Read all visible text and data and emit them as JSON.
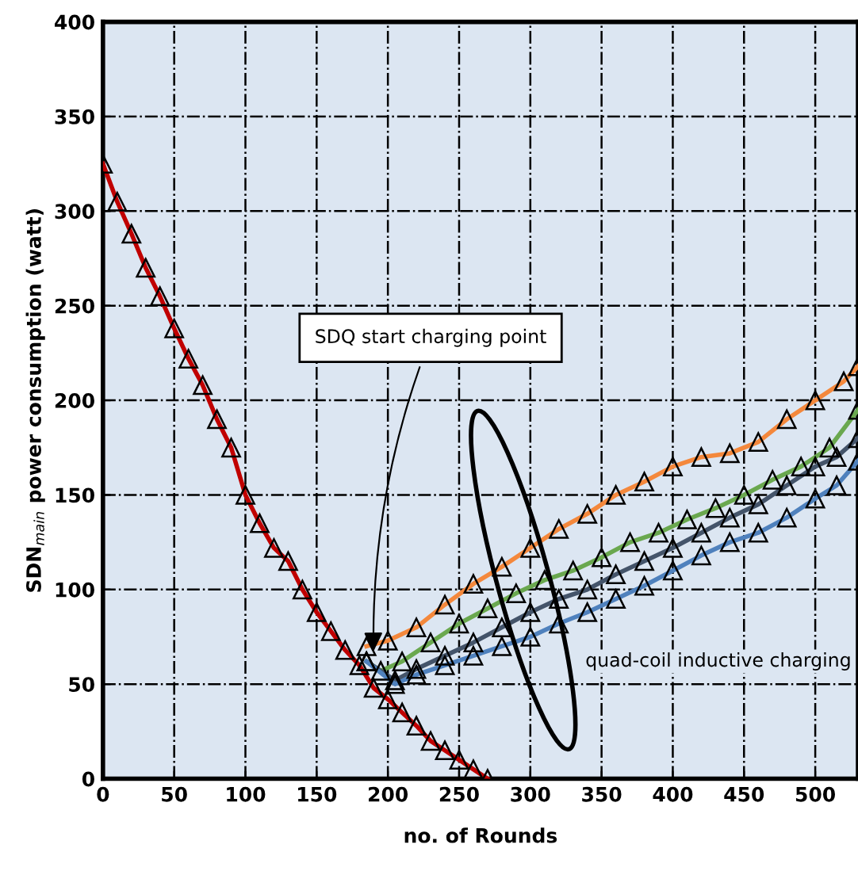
{
  "chart_data": {
    "type": "line",
    "xlabel": "no. of Rounds",
    "ylabel": "SDN$_{main}$ power consumption (watt)",
    "xlim": [
      0,
      530
    ],
    "xticks": [
      0,
      50,
      100,
      150,
      200,
      250,
      300,
      350,
      400,
      450,
      500
    ],
    "ylim": [
      0,
      400
    ],
    "yticks": [
      0,
      50,
      100,
      150,
      200,
      250,
      300,
      350,
      400
    ],
    "grid": true,
    "line_style": "solid",
    "marker": "triangle",
    "legend": false,
    "annotations": [
      {
        "text": "SDQ start charging point",
        "x": 190,
        "y": 65
      },
      "quad-coil inductive charging"
    ],
    "series": [
      {
        "color": "#c00000",
        "x": [
          0,
          10,
          20,
          30,
          40,
          50,
          60,
          70,
          80,
          90,
          100,
          110,
          120,
          130,
          140,
          150,
          160,
          170,
          180,
          190,
          200,
          210,
          220,
          230,
          240,
          250,
          260,
          270
        ],
        "values": [
          325,
          305,
          288,
          270,
          255,
          238,
          222,
          208,
          190,
          175,
          150,
          135,
          122,
          115,
          100,
          88,
          78,
          68,
          60,
          48,
          42,
          35,
          28,
          20,
          15,
          10,
          5,
          0
        ]
      },
      {
        "color": "#f4883c",
        "x": [
          185,
          200,
          220,
          240,
          260,
          280,
          300,
          320,
          340,
          360,
          380,
          400,
          420,
          440,
          460,
          480,
          500,
          520,
          530
        ],
        "values": [
          70,
          73,
          80,
          92,
          103,
          112,
          122,
          132,
          140,
          150,
          157,
          165,
          170,
          172,
          178,
          190,
          200,
          210,
          218
        ]
      },
      {
        "color": "#6aa84f",
        "x": [
          185,
          195,
          210,
          230,
          250,
          270,
          290,
          310,
          330,
          350,
          370,
          390,
          410,
          430,
          450,
          470,
          490,
          510,
          530
        ],
        "values": [
          62,
          57,
          62,
          72,
          82,
          90,
          98,
          105,
          110,
          117,
          125,
          130,
          137,
          143,
          150,
          158,
          165,
          175,
          195
        ]
      },
      {
        "color": "#44546a",
        "x": [
          185,
          205,
          220,
          240,
          260,
          280,
          300,
          320,
          340,
          360,
          380,
          400,
          420,
          440,
          460,
          480,
          500,
          515,
          530
        ],
        "values": [
          62,
          52,
          58,
          65,
          72,
          80,
          88,
          95,
          100,
          108,
          115,
          122,
          130,
          138,
          145,
          155,
          165,
          170,
          180
        ]
      },
      {
        "color": "#4f81bd",
        "x": [
          185,
          205,
          220,
          240,
          260,
          280,
          300,
          320,
          340,
          360,
          380,
          400,
          420,
          440,
          460,
          480,
          500,
          515,
          530
        ],
        "values": [
          62,
          50,
          55,
          60,
          65,
          70,
          75,
          82,
          88,
          95,
          102,
          110,
          118,
          125,
          130,
          138,
          148,
          155,
          168
        ]
      }
    ]
  }
}
